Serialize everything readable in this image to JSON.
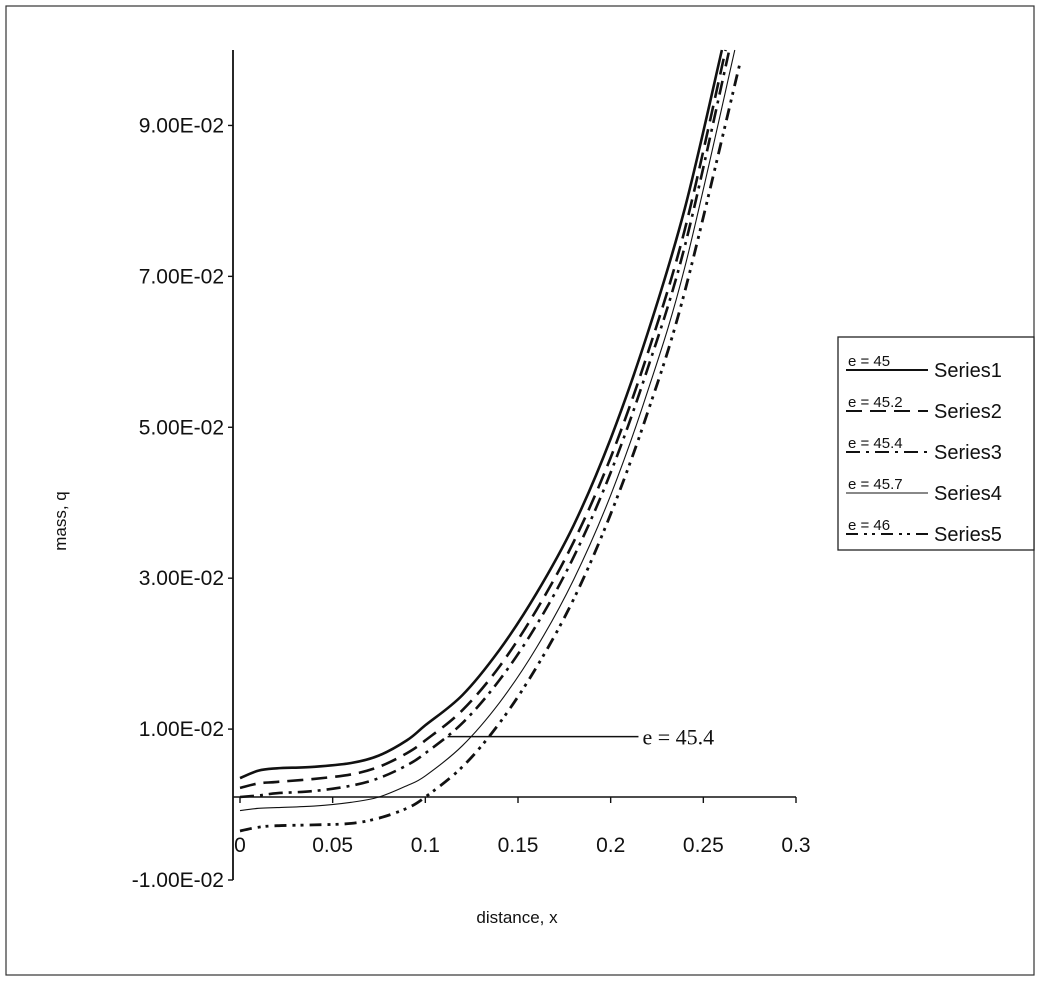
{
  "chart_data": {
    "type": "line",
    "title": "",
    "xlabel": "distance, x",
    "ylabel": "mass, q",
    "xlim": [
      0,
      0.3
    ],
    "ylim": [
      -0.01,
      0.1
    ],
    "x_ticks": [
      "0",
      "0.05",
      "0.1",
      "0.15",
      "0.2",
      "0.25",
      "0.3"
    ],
    "y_ticks": [
      "9.00E-02",
      "7.00E-02",
      "5.00E-02",
      "3.00E-02",
      "1.00E-02",
      "-1.00E-02"
    ],
    "grid": false,
    "legend_position": "right",
    "series": [
      {
        "name": "Series1",
        "handwritten_label": "e = 45",
        "style": "solid-thick",
        "x": [
          0,
          0.01,
          0.02,
          0.04,
          0.06,
          0.075,
          0.09,
          0.1,
          0.12,
          0.14,
          0.16,
          0.18,
          0.2,
          0.22,
          0.24,
          0.26
        ],
        "y": [
          0.0035,
          0.0045,
          0.0048,
          0.005,
          0.0055,
          0.0065,
          0.0085,
          0.0105,
          0.0145,
          0.0205,
          0.028,
          0.037,
          0.0485,
          0.0625,
          0.079,
          0.1
        ]
      },
      {
        "name": "Series2",
        "handwritten_label": "e = 45.2",
        "style": "dashed",
        "x": [
          0,
          0.01,
          0.02,
          0.04,
          0.06,
          0.075,
          0.09,
          0.1,
          0.12,
          0.14,
          0.16,
          0.18,
          0.2,
          0.22,
          0.24,
          0.262
        ],
        "y": [
          0.0022,
          0.0028,
          0.003,
          0.0034,
          0.004,
          0.005,
          0.0068,
          0.0085,
          0.0125,
          0.0183,
          0.0258,
          0.0348,
          0.046,
          0.0598,
          0.0762,
          0.1
        ]
      },
      {
        "name": "Series3",
        "handwritten_label": "e = 45.4",
        "style": "dash-dot",
        "x": [
          0,
          0.01,
          0.02,
          0.04,
          0.06,
          0.075,
          0.09,
          0.1,
          0.12,
          0.14,
          0.16,
          0.18,
          0.2,
          0.22,
          0.24,
          0.264
        ],
        "y": [
          0.001,
          0.0012,
          0.0015,
          0.0018,
          0.0025,
          0.0035,
          0.0052,
          0.0068,
          0.0108,
          0.0165,
          0.0238,
          0.0328,
          0.044,
          0.0578,
          0.074,
          0.1
        ]
      },
      {
        "name": "Series4",
        "handwritten_label": "e = 45.7",
        "style": "solid-thin",
        "x": [
          0,
          0.01,
          0.02,
          0.04,
          0.06,
          0.075,
          0.09,
          0.1,
          0.12,
          0.14,
          0.16,
          0.18,
          0.2,
          0.22,
          0.24,
          0.267
        ],
        "y": [
          -0.0008,
          -0.0005,
          -0.0004,
          -0.0002,
          0.0003,
          0.001,
          0.0025,
          0.0038,
          0.0078,
          0.0135,
          0.0208,
          0.0298,
          0.041,
          0.0548,
          0.0712,
          0.1
        ]
      },
      {
        "name": "Series5",
        "handwritten_label": "e = 46",
        "style": "dash-dot-dot",
        "x": [
          0,
          0.01,
          0.02,
          0.04,
          0.06,
          0.075,
          0.09,
          0.1,
          0.12,
          0.14,
          0.16,
          0.18,
          0.2,
          0.22,
          0.24,
          0.27
        ],
        "y": [
          -0.0035,
          -0.003,
          -0.0028,
          -0.0027,
          -0.0025,
          -0.0018,
          -0.0005,
          0.001,
          0.005,
          0.0108,
          0.0182,
          0.0272,
          0.0385,
          0.052,
          0.068,
          0.0985
        ]
      }
    ],
    "annotation": {
      "text": "e = 45.4",
      "points_to": {
        "x": 0.112,
        "y": 0.009
      },
      "label_at": {
        "x": 0.215,
        "y": 0.009
      }
    }
  }
}
